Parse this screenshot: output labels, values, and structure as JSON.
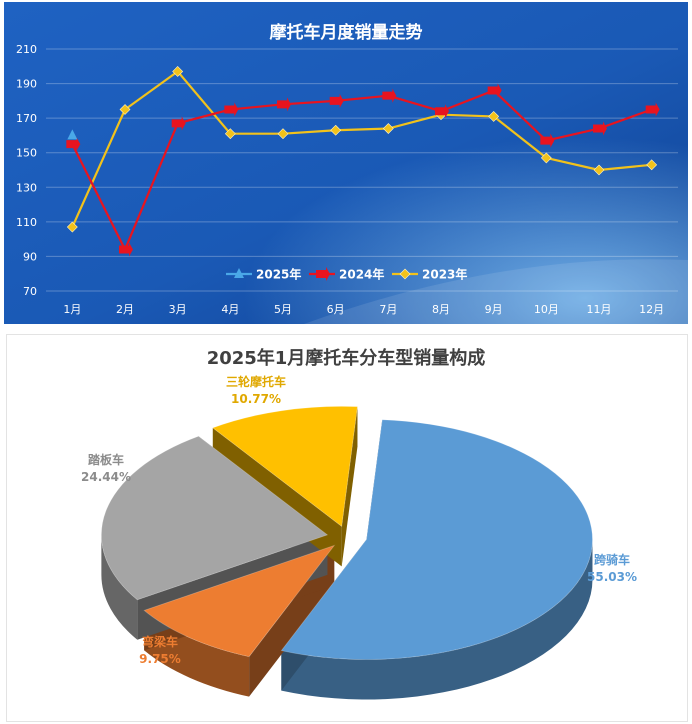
{
  "chart_data": [
    {
      "type": "line",
      "title": "摩托车月度销量走势",
      "categories": [
        "1月",
        "2月",
        "3月",
        "4月",
        "5月",
        "6月",
        "7月",
        "8月",
        "9月",
        "10月",
        "11月",
        "12月"
      ],
      "ylim": [
        70,
        210
      ],
      "yticks": [
        "70",
        "90",
        "110",
        "130",
        "150",
        "170",
        "190",
        "210"
      ],
      "grid": true,
      "legend_position": "bottom-center",
      "series": [
        {
          "name": "2025年",
          "color": "#4aa8e8",
          "marker": "triangle",
          "values": [
            160,
            null,
            null,
            null,
            null,
            null,
            null,
            null,
            null,
            null,
            null,
            null
          ]
        },
        {
          "name": "2024年",
          "color": "#e8141f",
          "marker": "arrow",
          "values": [
            155,
            94,
            167,
            175,
            178,
            180,
            183,
            174,
            186,
            157,
            164,
            175
          ]
        },
        {
          "name": "2023年",
          "color": "#f2c21b",
          "marker": "diamond",
          "values": [
            107,
            175,
            197,
            161,
            161,
            163,
            164,
            172,
            171,
            147,
            140,
            143
          ]
        }
      ]
    },
    {
      "type": "pie",
      "title": "2025年1月摩托车分车型销量构成",
      "slices": [
        {
          "label": "跨骑车",
          "value": 55.03,
          "pct": "55.03%",
          "color": "#5b9bd5",
          "text_color": "#5b9bd5"
        },
        {
          "label": "弯梁车",
          "value": 9.75,
          "pct": "9.75%",
          "color": "#ed7d31",
          "text_color": "#ed7d31"
        },
        {
          "label": "踏板车",
          "value": 24.44,
          "pct": "24.44%",
          "color": "#a5a5a5",
          "text_color": "#8c8c8c"
        },
        {
          "label": "三轮摩托车",
          "value": 10.77,
          "pct": "10.77%",
          "color": "#ffc000",
          "text_color": "#e0a800"
        }
      ]
    }
  ]
}
